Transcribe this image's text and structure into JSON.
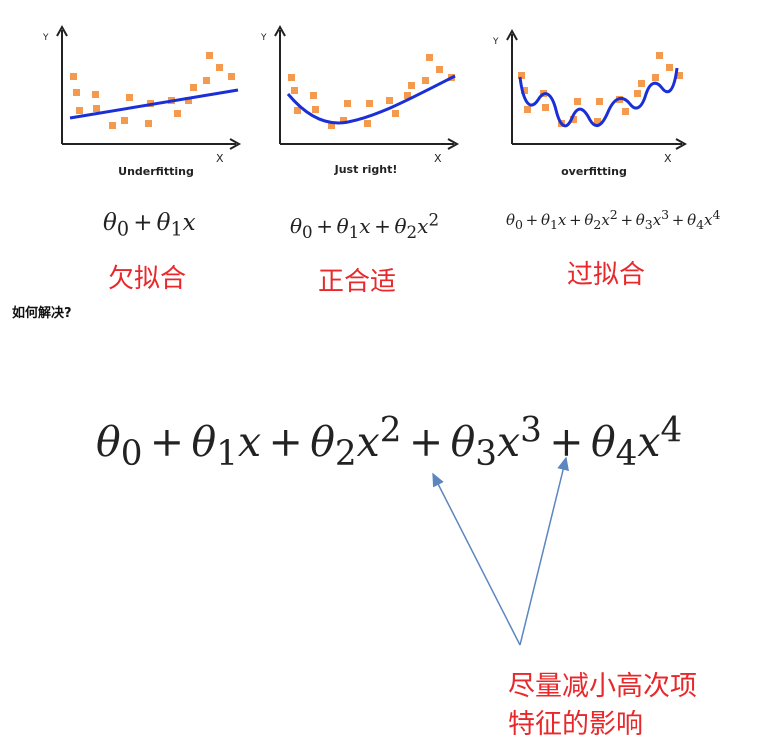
{
  "panels": [
    {
      "id": "underfitting",
      "caption": "Underfitting",
      "x_axis_label": "X",
      "y_axis_label": "Y",
      "formula_terms": [
        {
          "coef": "θ",
          "sub": "0",
          "var": "",
          "sup": ""
        },
        {
          "coef": "θ",
          "sub": "1",
          "var": "x",
          "sup": ""
        }
      ],
      "label_cn": "欠拟合"
    },
    {
      "id": "just-right",
      "caption": "Just right!",
      "x_axis_label": "X",
      "y_axis_label": "Y",
      "formula_terms": [
        {
          "coef": "θ",
          "sub": "0",
          "var": "",
          "sup": ""
        },
        {
          "coef": "θ",
          "sub": "1",
          "var": "x",
          "sup": ""
        },
        {
          "coef": "θ",
          "sub": "2",
          "var": "x",
          "sup": "2"
        }
      ],
      "label_cn": "正合适"
    },
    {
      "id": "overfitting",
      "caption": "overfitting",
      "x_axis_label": "X",
      "y_axis_label": "Y",
      "formula_terms": [
        {
          "coef": "θ",
          "sub": "0",
          "var": "",
          "sup": ""
        },
        {
          "coef": "θ",
          "sub": "1",
          "var": "x",
          "sup": ""
        },
        {
          "coef": "θ",
          "sub": "2",
          "var": "x",
          "sup": "2"
        },
        {
          "coef": "θ",
          "sub": "3",
          "var": "x",
          "sup": "3"
        },
        {
          "coef": "θ",
          "sub": "4",
          "var": "x",
          "sup": "4"
        }
      ],
      "label_cn": "过拟合"
    }
  ],
  "heading": "如何解决?",
  "big_formula_terms": [
    {
      "coef": "θ",
      "sub": "0",
      "var": "",
      "sup": ""
    },
    {
      "coef": "θ",
      "sub": "1",
      "var": "x",
      "sup": ""
    },
    {
      "coef": "θ",
      "sub": "2",
      "var": "x",
      "sup": "2"
    },
    {
      "coef": "θ",
      "sub": "3",
      "var": "x",
      "sup": "3"
    },
    {
      "coef": "θ",
      "sub": "4",
      "var": "x",
      "sup": "4"
    }
  ],
  "plus_sign": "+",
  "note_lines": [
    "尽量减小高次项",
    "特征的影响"
  ],
  "colors": {
    "points": "#f39a4f",
    "fit_line": "#1a2fd6",
    "axis": "#222222",
    "arrow": "#5b86c0",
    "label_red": "#e8282b"
  }
}
